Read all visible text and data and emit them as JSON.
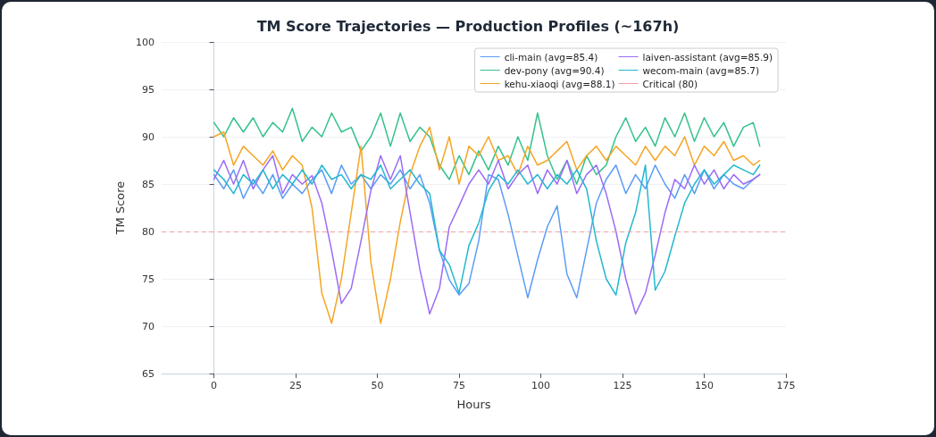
{
  "chart_data": {
    "type": "line",
    "title": "TM Score Trajectories — Production Profiles (~167h)",
    "xlabel": "Hours",
    "ylabel": "TM Score",
    "x": [
      0,
      3,
      6,
      9,
      12,
      15,
      18,
      21,
      24,
      27,
      30,
      33,
      36,
      39,
      42,
      45,
      48,
      51,
      54,
      57,
      60,
      63,
      66,
      69,
      72,
      75,
      78,
      81,
      84,
      87,
      90,
      93,
      96,
      99,
      102,
      105,
      108,
      111,
      114,
      117,
      120,
      123,
      126,
      129,
      132,
      135,
      138,
      141,
      144,
      147,
      150,
      153,
      156,
      159,
      162,
      165,
      167
    ],
    "series": [
      {
        "name": "cli-main (avg=85.4)",
        "color": "#5b9cf6",
        "values": [
          86,
          84.5,
          86.5,
          83.5,
          85.5,
          84,
          86,
          83.5,
          85,
          84,
          85.5,
          86.5,
          84,
          87,
          85,
          86,
          84.5,
          86,
          85,
          86.5,
          84.5,
          86,
          83,
          78,
          74.9,
          73.3,
          74.5,
          79,
          86,
          85.5,
          81.8,
          77.4,
          73,
          77,
          80.5,
          82.7,
          75.5,
          73,
          78,
          83,
          85.5,
          87,
          84,
          86,
          84.5,
          87,
          85,
          83.5,
          86,
          84,
          86.5,
          84.5,
          86,
          85,
          84.5,
          85.5,
          86
        ]
      },
      {
        "name": "dev-pony (avg=90.4)",
        "color": "#34c28a",
        "values": [
          91.5,
          90,
          92,
          90.5,
          92,
          90,
          91.5,
          90.5,
          93,
          89.5,
          91,
          90,
          92.5,
          90.5,
          91,
          88.5,
          90,
          92.5,
          89,
          92.5,
          89.5,
          91,
          90,
          87,
          85.5,
          88,
          86,
          88.5,
          86.5,
          89,
          87,
          90,
          87.5,
          92.5,
          88,
          85.5,
          87.5,
          85,
          88,
          86,
          87,
          90,
          92,
          89.5,
          91,
          89,
          92,
          90,
          92.5,
          89.5,
          92,
          90,
          91.5,
          89,
          91,
          91.5,
          89
        ]
      },
      {
        "name": "kehu-xiaoqi (avg=88.1)",
        "color": "#f5a524",
        "values": [
          90,
          90.5,
          87,
          89,
          88,
          87,
          88.5,
          86.5,
          88,
          87,
          82.5,
          73.5,
          70.3,
          75,
          82,
          89,
          76.8,
          70.3,
          75,
          81,
          86,
          89,
          91,
          86.5,
          90,
          85,
          89,
          88,
          90,
          87.5,
          88,
          86,
          89,
          87,
          87.5,
          88.5,
          89.5,
          86.5,
          88,
          89,
          87.5,
          89,
          88,
          87,
          89,
          87.5,
          89,
          88,
          90,
          87,
          89,
          88,
          89.5,
          87.5,
          88,
          87,
          87.5
        ]
      },
      {
        "name": "laiven-assistant (avg=85.9)",
        "color": "#9b6cf5",
        "values": [
          85.5,
          87.5,
          85,
          87.5,
          84.5,
          86.5,
          88,
          84,
          86,
          85,
          85.9,
          83,
          78,
          72.4,
          74,
          79,
          84.3,
          88,
          85.5,
          88,
          82,
          76,
          71.3,
          74,
          80.5,
          82.7,
          85,
          86.5,
          85,
          87.5,
          84.5,
          86,
          87,
          84,
          86.5,
          85,
          87.5,
          84,
          86,
          87,
          84,
          80,
          75,
          71.3,
          73.5,
          77.5,
          82,
          85.5,
          84.5,
          87,
          85,
          86.5,
          84.5,
          86,
          85,
          85.5,
          86
        ]
      },
      {
        "name": "wecom-main (avg=85.7)",
        "color": "#22b8cf",
        "values": [
          86.5,
          85.5,
          84,
          86,
          85,
          86.5,
          84.5,
          86,
          85,
          86.5,
          85,
          87,
          85.5,
          86,
          84.5,
          86,
          85.5,
          87,
          84.5,
          85.5,
          86.5,
          85,
          84,
          78,
          76.5,
          73.5,
          78.5,
          80.9,
          84.3,
          86,
          85,
          86.5,
          85,
          86,
          84.5,
          86,
          85,
          86.5,
          84.5,
          79,
          75,
          73.3,
          78.8,
          82,
          87,
          73.8,
          75.8,
          79.5,
          83,
          85,
          86.5,
          85,
          86,
          87,
          86.5,
          86,
          87
        ]
      }
    ],
    "ref_lines": [
      {
        "axis": "y",
        "value": 80,
        "label": "Critical (80)",
        "color": "#f0a0a0",
        "line_style": "dashed"
      }
    ],
    "xlim": [
      -16,
      175
    ],
    "xticks": [
      0,
      25,
      50,
      75,
      100,
      125,
      150,
      175
    ],
    "ylim": [
      65,
      100
    ],
    "yticks": [
      65,
      70,
      75,
      80,
      85,
      90,
      95,
      100
    ],
    "grid": "y",
    "legend": "top right",
    "marker": "none",
    "line_style": "solid"
  }
}
